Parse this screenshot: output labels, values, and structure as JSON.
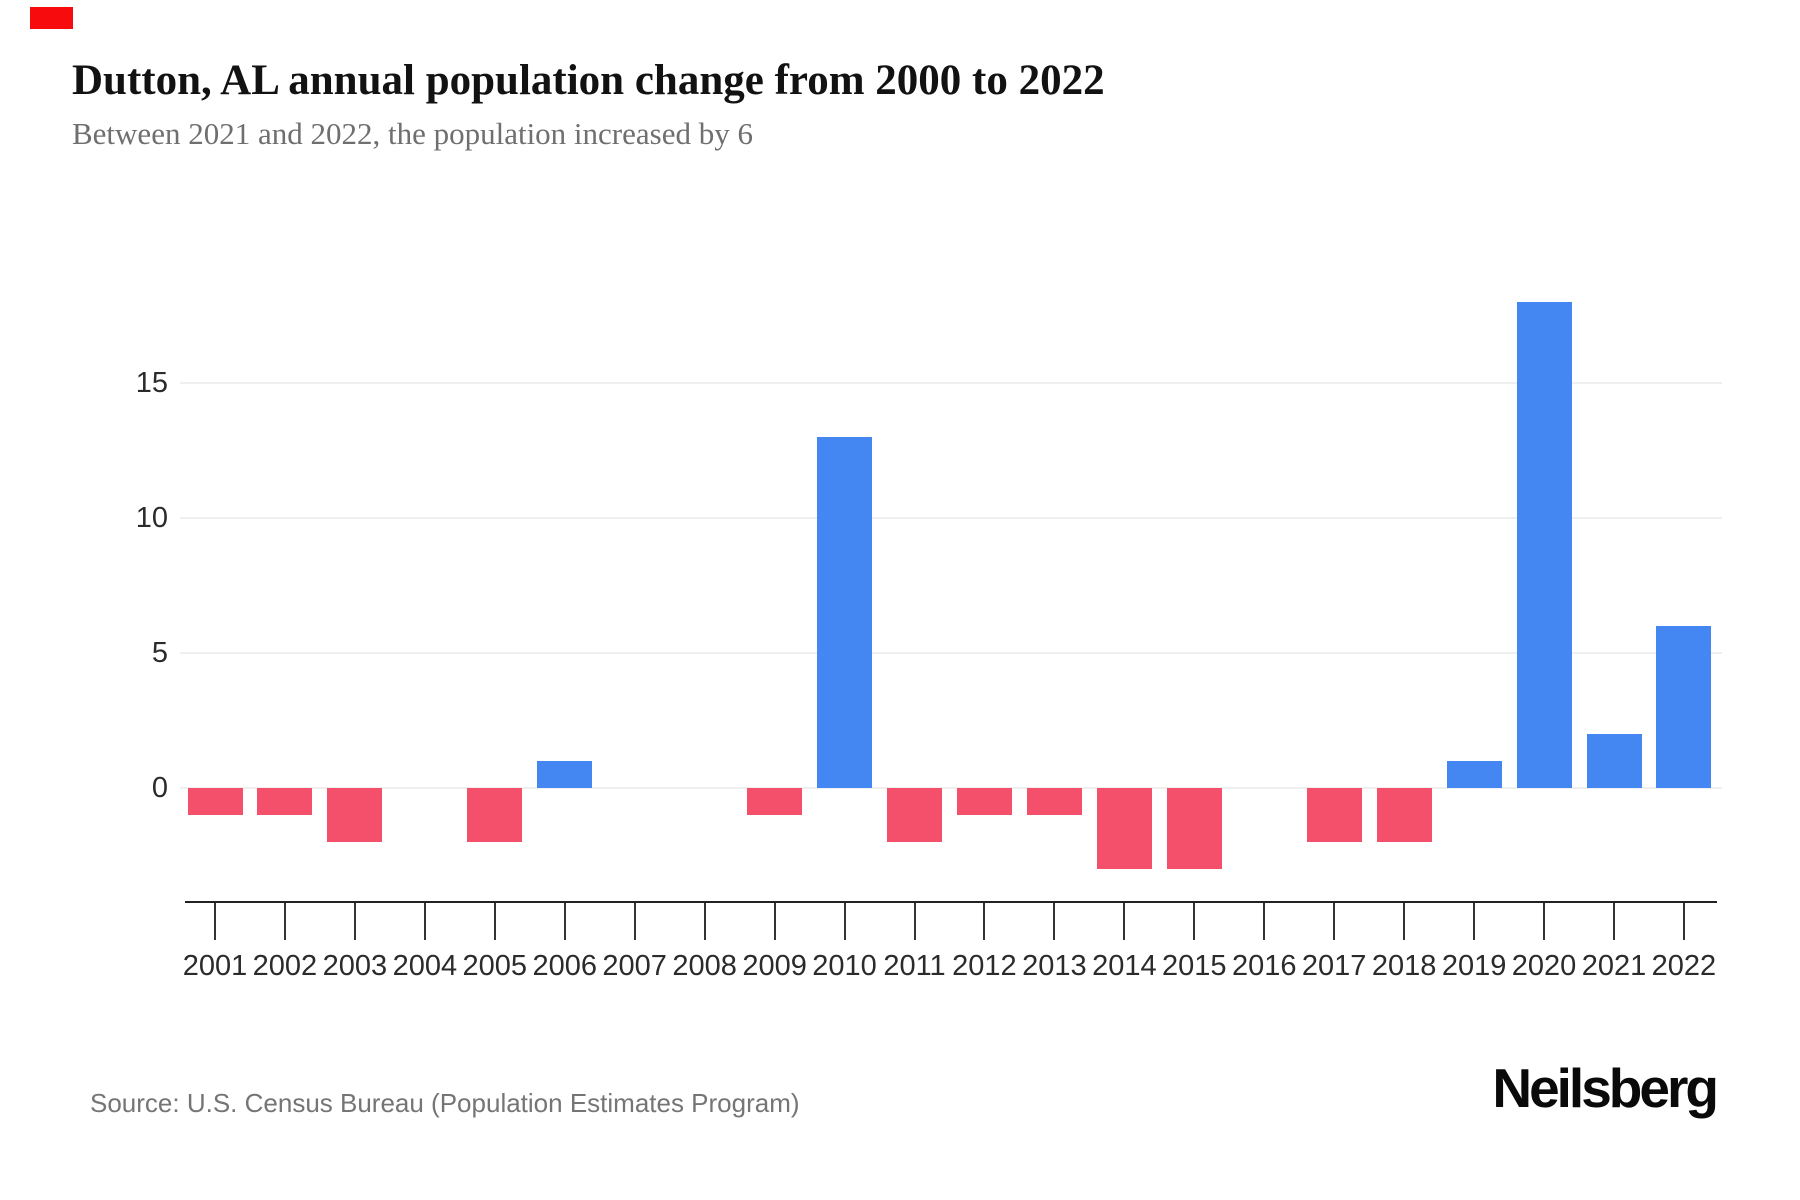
{
  "page": {
    "title": "Dutton, AL annual population change from 2000 to 2022",
    "subtitle": "Between 2021 and 2022, the population increased by 6",
    "source": "Source: U.S. Census Bureau (Population Estimates Program)",
    "brand": "Neilsberg",
    "corner_marker_color": "#f70b0c"
  },
  "chart_data": {
    "type": "bar",
    "title": "Dutton, AL annual population change from 2000 to 2022",
    "subtitle": "Between 2021 and 2022, the population increased by 6",
    "categories": [
      "2001",
      "2002",
      "2003",
      "2004",
      "2005",
      "2006",
      "2007",
      "2008",
      "2009",
      "2010",
      "2011",
      "2012",
      "2013",
      "2014",
      "2015",
      "2016",
      "2017",
      "2018",
      "2019",
      "2020",
      "2021",
      "2022"
    ],
    "values": [
      -1,
      -1,
      -2,
      0,
      -2,
      1,
      0,
      0,
      -1,
      13,
      -2,
      -1,
      -1,
      -3,
      -3,
      0,
      -2,
      -2,
      1,
      18,
      2,
      6
    ],
    "xlabel": "",
    "ylabel": "",
    "yticks": [
      0,
      5,
      10,
      15
    ],
    "ylim": [
      -4,
      19
    ],
    "grid": true,
    "legend": false,
    "positive_color": "#4587f2",
    "negative_color": "#f4506c"
  }
}
